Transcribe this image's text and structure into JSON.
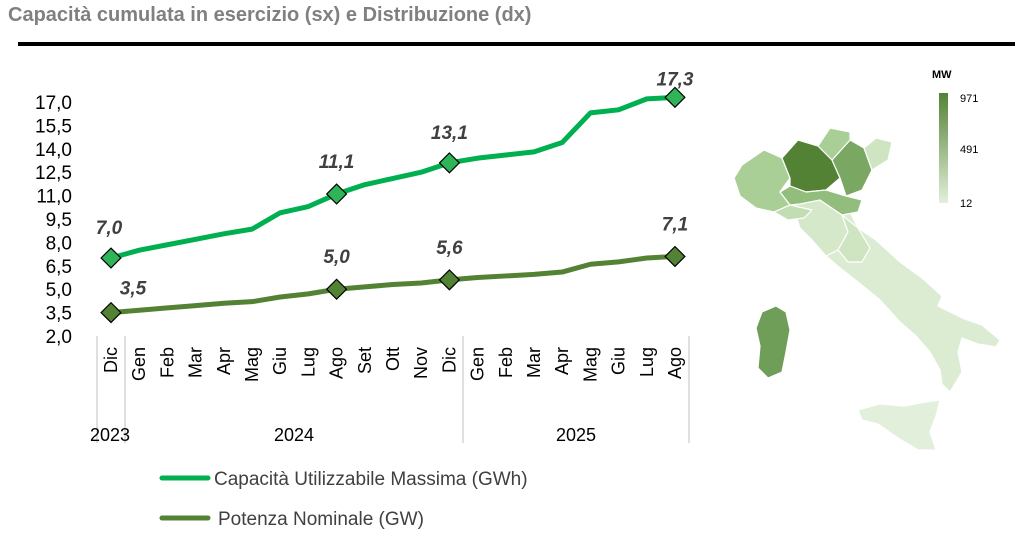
{
  "title": "Capacità cumulata in esercizio (sx) e Distribuzione (dx)",
  "chart_data": {
    "type": "line",
    "categories": [
      "Dic",
      "Gen",
      "Feb",
      "Mar",
      "Apr",
      "Mag",
      "Giu",
      "Lug",
      "Ago",
      "Set",
      "Ott",
      "Nov",
      "Dic",
      "Gen",
      "Feb",
      "Mar",
      "Apr",
      "Mag",
      "Giu",
      "Lug",
      "Ago"
    ],
    "years": [
      {
        "label": "2023",
        "from": 0,
        "to": 0
      },
      {
        "label": "2024",
        "from": 1,
        "to": 12
      },
      {
        "label": "2025",
        "from": 13,
        "to": 20
      }
    ],
    "yticks": [
      "17,0",
      "15,5",
      "14,0",
      "12,5",
      "11,0",
      "9,5",
      "8,0",
      "6,5",
      "5,0",
      "3,5",
      "2,0"
    ],
    "ylim": [
      2.0,
      17.0
    ],
    "series": [
      {
        "name": "Capacità Utilizzabile Massima (GWh)",
        "color": "#00b050",
        "marker_color": "#2fb457",
        "values": [
          7.0,
          7.5,
          7.85,
          8.2,
          8.55,
          8.85,
          9.9,
          10.3,
          11.1,
          11.7,
          12.1,
          12.5,
          13.1,
          13.4,
          13.6,
          13.8,
          14.4,
          16.3,
          16.5,
          17.2,
          17.3
        ],
        "labels": [
          {
            "i": 0,
            "text": "7,0"
          },
          {
            "i": 8,
            "text": "11,1"
          },
          {
            "i": 12,
            "text": "13,1"
          },
          {
            "i": 20,
            "text": "17,3"
          }
        ]
      },
      {
        "name": "Potenza Nominale (GW)",
        "color": "#548235",
        "marker_color": "#548235",
        "values": [
          3.5,
          3.65,
          3.8,
          3.95,
          4.1,
          4.2,
          4.5,
          4.7,
          5.0,
          5.15,
          5.3,
          5.4,
          5.6,
          5.75,
          5.85,
          5.95,
          6.1,
          6.6,
          6.75,
          7.0,
          7.1
        ],
        "labels": [
          {
            "i": 0,
            "text": "3,5"
          },
          {
            "i": 8,
            "text": "5,0"
          },
          {
            "i": 12,
            "text": "5,6"
          },
          {
            "i": 20,
            "text": "7,1"
          }
        ]
      }
    ]
  },
  "map": {
    "unit": "MW",
    "scale_labels": [
      "971",
      "491",
      "12"
    ],
    "color_high": "#548235",
    "color_low": "#e2efda"
  }
}
